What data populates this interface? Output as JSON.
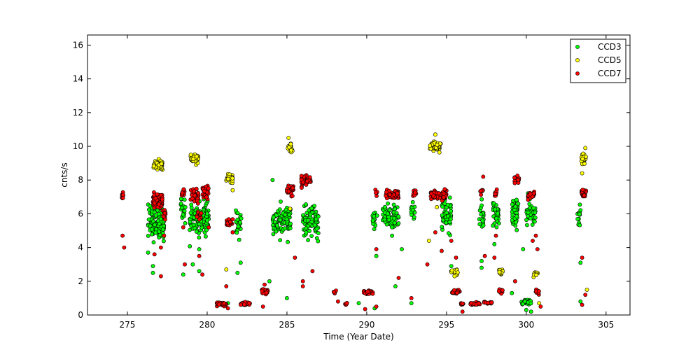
{
  "chart_data": {
    "type": "scatter",
    "title": "",
    "xlabel": "Time (Year Date)",
    "ylabel": "cnts/s",
    "xlim": [
      272.5,
      306.5
    ],
    "ylim": [
      0,
      16.6
    ],
    "xticks": [
      275,
      280,
      285,
      290,
      295,
      300,
      305
    ],
    "yticks": [
      0,
      2,
      4,
      6,
      8,
      10,
      12,
      14,
      16
    ],
    "grid": false,
    "legend": "top-right",
    "series": [
      {
        "name": "CCD3",
        "color": "#00ff00",
        "clusters": [
          {
            "x": 276.8,
            "y": 5.5,
            "dx": 0.5,
            "dy": 0.9,
            "n": 120
          },
          {
            "x": 278.5,
            "y": 6.3,
            "dx": 0.15,
            "dy": 0.7,
            "n": 20
          },
          {
            "x": 279.5,
            "y": 5.8,
            "dx": 0.6,
            "dy": 0.9,
            "n": 110
          },
          {
            "x": 282.0,
            "y": 5.3,
            "dx": 0.2,
            "dy": 0.6,
            "n": 25
          },
          {
            "x": 284.4,
            "y": 5.5,
            "dx": 0.3,
            "dy": 0.8,
            "n": 45
          },
          {
            "x": 285.0,
            "y": 5.6,
            "dx": 0.25,
            "dy": 0.8,
            "n": 40
          },
          {
            "x": 286.5,
            "y": 5.5,
            "dx": 0.5,
            "dy": 0.8,
            "n": 80
          },
          {
            "x": 290.5,
            "y": 5.7,
            "dx": 0.15,
            "dy": 0.6,
            "n": 15
          },
          {
            "x": 291.5,
            "y": 5.8,
            "dx": 0.5,
            "dy": 0.7,
            "n": 80
          },
          {
            "x": 292.9,
            "y": 6.2,
            "dx": 0.12,
            "dy": 0.6,
            "n": 15
          },
          {
            "x": 295.0,
            "y": 5.9,
            "dx": 0.3,
            "dy": 0.8,
            "n": 60
          },
          {
            "x": 297.2,
            "y": 5.9,
            "dx": 0.15,
            "dy": 0.7,
            "n": 20
          },
          {
            "x": 298.1,
            "y": 6.0,
            "dx": 0.2,
            "dy": 0.7,
            "n": 35
          },
          {
            "x": 299.3,
            "y": 6.1,
            "dx": 0.2,
            "dy": 0.8,
            "n": 40
          },
          {
            "x": 300.3,
            "y": 6.0,
            "dx": 0.3,
            "dy": 0.7,
            "n": 40
          },
          {
            "x": 303.3,
            "y": 5.9,
            "dx": 0.1,
            "dy": 0.5,
            "n": 12
          },
          {
            "x": 300.0,
            "y": 0.75,
            "dx": 0.3,
            "dy": 0.12,
            "n": 40
          }
        ],
        "points": [
          [
            276.3,
            3.7
          ],
          [
            276.6,
            2.9
          ],
          [
            276.6,
            2.5
          ],
          [
            278.5,
            2.4
          ],
          [
            279.1,
            3.0
          ],
          [
            279.5,
            2.6
          ],
          [
            279.5,
            3.9
          ],
          [
            281.3,
            0.7
          ],
          [
            281.9,
            2.5
          ],
          [
            282.1,
            3.1
          ],
          [
            283.9,
            2.0
          ],
          [
            284.1,
            8.0
          ],
          [
            285.0,
            1.0
          ],
          [
            289.5,
            0.7
          ],
          [
            290.5,
            0.4
          ],
          [
            290.6,
            3.5
          ],
          [
            291.8,
            1.7
          ],
          [
            292.2,
            3.9
          ],
          [
            292.8,
            0.7
          ],
          [
            295.3,
            2.9
          ],
          [
            297.2,
            2.8
          ],
          [
            297.2,
            3.2
          ],
          [
            298.0,
            4.2
          ],
          [
            299.1,
            1.3
          ],
          [
            299.8,
            3.9
          ],
          [
            300.0,
            0.3
          ],
          [
            300.3,
            0.2
          ],
          [
            303.4,
            3.1
          ],
          [
            303.4,
            0.8
          ]
        ]
      },
      {
        "name": "CCD5",
        "color": "#ffff00",
        "clusters": [
          {
            "x": 276.9,
            "y": 8.9,
            "dx": 0.3,
            "dy": 0.25,
            "n": 50
          },
          {
            "x": 279.2,
            "y": 9.3,
            "dx": 0.25,
            "dy": 0.25,
            "n": 45
          },
          {
            "x": 281.4,
            "y": 8.1,
            "dx": 0.2,
            "dy": 0.25,
            "n": 30
          },
          {
            "x": 285.2,
            "y": 9.9,
            "dx": 0.15,
            "dy": 0.2,
            "n": 30
          },
          {
            "x": 294.3,
            "y": 10.0,
            "dx": 0.35,
            "dy": 0.25,
            "n": 55
          },
          {
            "x": 295.5,
            "y": 2.5,
            "dx": 0.2,
            "dy": 0.2,
            "n": 20
          },
          {
            "x": 298.4,
            "y": 2.5,
            "dx": 0.15,
            "dy": 0.2,
            "n": 15
          },
          {
            "x": 300.6,
            "y": 2.4,
            "dx": 0.15,
            "dy": 0.15,
            "n": 12
          },
          {
            "x": 303.6,
            "y": 9.2,
            "dx": 0.15,
            "dy": 0.3,
            "n": 25
          }
        ],
        "points": [
          [
            281.2,
            2.7
          ],
          [
            281.6,
            7.4
          ],
          [
            285.1,
            10.5
          ],
          [
            285.2,
            6.3
          ],
          [
            294.3,
            10.7
          ],
          [
            293.9,
            4.4
          ],
          [
            294.4,
            6.4
          ],
          [
            295.5,
            2.3
          ],
          [
            303.5,
            8.4
          ],
          [
            303.7,
            9.9
          ],
          [
            303.8,
            1.5
          ],
          [
            300.8,
            0.7
          ]
        ]
      },
      {
        "name": "CCD7",
        "color": "#ff0000",
        "clusters": [
          {
            "x": 274.7,
            "y": 7.1,
            "dx": 0.05,
            "dy": 0.2,
            "n": 10
          },
          {
            "x": 276.9,
            "y": 6.8,
            "dx": 0.3,
            "dy": 0.4,
            "n": 70
          },
          {
            "x": 277.3,
            "y": 5.9,
            "dx": 0.1,
            "dy": 0.3,
            "n": 15
          },
          {
            "x": 278.5,
            "y": 7.2,
            "dx": 0.1,
            "dy": 0.2,
            "n": 15
          },
          {
            "x": 279.2,
            "y": 7.1,
            "dx": 0.25,
            "dy": 0.4,
            "n": 40
          },
          {
            "x": 279.9,
            "y": 7.3,
            "dx": 0.2,
            "dy": 0.3,
            "n": 30
          },
          {
            "x": 279.5,
            "y": 5.9,
            "dx": 0.15,
            "dy": 0.3,
            "n": 15
          },
          {
            "x": 281.4,
            "y": 5.5,
            "dx": 0.2,
            "dy": 0.15,
            "n": 25
          },
          {
            "x": 280.9,
            "y": 0.65,
            "dx": 0.3,
            "dy": 0.1,
            "n": 30
          },
          {
            "x": 282.4,
            "y": 0.65,
            "dx": 0.3,
            "dy": 0.1,
            "n": 25
          },
          {
            "x": 283.6,
            "y": 1.4,
            "dx": 0.2,
            "dy": 0.12,
            "n": 25
          },
          {
            "x": 285.2,
            "y": 7.4,
            "dx": 0.2,
            "dy": 0.3,
            "n": 30
          },
          {
            "x": 286.2,
            "y": 8.0,
            "dx": 0.3,
            "dy": 0.25,
            "n": 50
          },
          {
            "x": 288.0,
            "y": 1.4,
            "dx": 0.08,
            "dy": 0.1,
            "n": 6
          },
          {
            "x": 288.7,
            "y": 0.7,
            "dx": 0.08,
            "dy": 0.08,
            "n": 5
          },
          {
            "x": 290.1,
            "y": 1.35,
            "dx": 0.3,
            "dy": 0.1,
            "n": 35
          },
          {
            "x": 290.6,
            "y": 7.3,
            "dx": 0.06,
            "dy": 0.15,
            "n": 6
          },
          {
            "x": 291.6,
            "y": 7.1,
            "dx": 0.4,
            "dy": 0.25,
            "n": 45
          },
          {
            "x": 293.0,
            "y": 7.2,
            "dx": 0.1,
            "dy": 0.2,
            "n": 12
          },
          {
            "x": 294.5,
            "y": 7.1,
            "dx": 0.5,
            "dy": 0.25,
            "n": 70
          },
          {
            "x": 295.6,
            "y": 1.4,
            "dx": 0.25,
            "dy": 0.1,
            "n": 25
          },
          {
            "x": 296.0,
            "y": 0.65,
            "dx": 0.1,
            "dy": 0.08,
            "n": 8
          },
          {
            "x": 296.8,
            "y": 0.65,
            "dx": 0.3,
            "dy": 0.08,
            "n": 25
          },
          {
            "x": 297.2,
            "y": 7.4,
            "dx": 0.08,
            "dy": 0.2,
            "n": 10
          },
          {
            "x": 297.6,
            "y": 0.7,
            "dx": 0.25,
            "dy": 0.08,
            "n": 20
          },
          {
            "x": 298.1,
            "y": 7.2,
            "dx": 0.08,
            "dy": 0.2,
            "n": 8
          },
          {
            "x": 298.4,
            "y": 1.4,
            "dx": 0.12,
            "dy": 0.12,
            "n": 12
          },
          {
            "x": 299.4,
            "y": 8.0,
            "dx": 0.15,
            "dy": 0.3,
            "n": 20
          },
          {
            "x": 300.3,
            "y": 7.1,
            "dx": 0.2,
            "dy": 0.2,
            "n": 25
          },
          {
            "x": 300.7,
            "y": 1.4,
            "dx": 0.1,
            "dy": 0.15,
            "n": 12
          },
          {
            "x": 303.6,
            "y": 7.2,
            "dx": 0.15,
            "dy": 0.25,
            "n": 20
          }
        ],
        "points": [
          [
            274.7,
            4.7
          ],
          [
            274.8,
            4.0
          ],
          [
            276.7,
            3.6
          ],
          [
            277.1,
            4.0
          ],
          [
            277.1,
            2.3
          ],
          [
            277.3,
            4.7
          ],
          [
            278.5,
            5.2
          ],
          [
            278.6,
            3.0
          ],
          [
            279.5,
            3.5
          ],
          [
            279.7,
            2.4
          ],
          [
            280.1,
            5.2
          ],
          [
            281.2,
            1.7
          ],
          [
            281.3,
            0.4
          ],
          [
            281.6,
            4.9
          ],
          [
            283.5,
            0.5
          ],
          [
            283.6,
            1.8
          ],
          [
            285.5,
            3.4
          ],
          [
            286.0,
            2.0
          ],
          [
            286.0,
            1.7
          ],
          [
            286.6,
            2.6
          ],
          [
            288.2,
            0.8
          ],
          [
            289.9,
            0.35
          ],
          [
            290.6,
            3.9
          ],
          [
            290.6,
            0.5
          ],
          [
            292.0,
            2.2
          ],
          [
            292.8,
            1.0
          ],
          [
            293.8,
            3.0
          ],
          [
            294.3,
            4.9
          ],
          [
            294.7,
            3.8
          ],
          [
            295.3,
            4.4
          ],
          [
            295.6,
            3.4
          ],
          [
            296.0,
            0.2
          ],
          [
            297.3,
            8.2
          ],
          [
            297.4,
            3.5
          ],
          [
            298.0,
            3.4
          ],
          [
            298.1,
            4.7
          ],
          [
            299.3,
            2.0
          ],
          [
            300.4,
            4.4
          ],
          [
            300.6,
            4.7
          ],
          [
            300.7,
            3.9
          ],
          [
            300.9,
            0.5
          ],
          [
            303.5,
            3.4
          ],
          [
            303.5,
            0.6
          ],
          [
            303.7,
            1.2
          ]
        ]
      }
    ]
  }
}
